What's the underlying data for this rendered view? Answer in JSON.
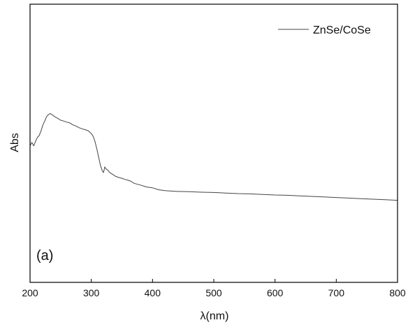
{
  "chart_data": {
    "type": "line",
    "xlabel": "λ(nm)",
    "ylabel": "Abs",
    "xlim": [
      200,
      800
    ],
    "ylim": [
      0,
      1.0
    ],
    "x_ticks": [
      "200",
      "300",
      "400",
      "500",
      "600",
      "700",
      "800"
    ],
    "y_ticks_labeled": false,
    "grid": false,
    "legend_position": "top-right",
    "panel_label": "(a)",
    "colors": {
      "line": "#444444",
      "axis": "#000000"
    },
    "series": [
      {
        "name": "ZnSe/CoSe",
        "x": [
          200,
          203,
          206,
          209,
          212,
          215,
          218,
          221,
          224,
          227,
          230,
          233,
          236,
          240,
          245,
          250,
          255,
          260,
          265,
          270,
          275,
          280,
          285,
          290,
          295,
          300,
          303,
          306,
          309,
          312,
          315,
          318,
          320,
          322,
          324,
          326,
          328,
          330,
          335,
          340,
          345,
          350,
          355,
          360,
          365,
          370,
          380,
          390,
          400,
          410,
          420,
          440,
          460,
          480,
          500,
          520,
          540,
          560,
          580,
          600,
          620,
          640,
          660,
          680,
          700,
          720,
          740,
          760,
          780,
          800
        ],
        "y": [
          0.491,
          0.503,
          0.491,
          0.507,
          0.521,
          0.528,
          0.545,
          0.566,
          0.58,
          0.596,
          0.603,
          0.607,
          0.603,
          0.596,
          0.59,
          0.583,
          0.58,
          0.576,
          0.573,
          0.566,
          0.562,
          0.556,
          0.552,
          0.549,
          0.545,
          0.535,
          0.525,
          0.507,
          0.48,
          0.45,
          0.42,
          0.401,
          0.395,
          0.415,
          0.408,
          0.405,
          0.401,
          0.395,
          0.388,
          0.381,
          0.377,
          0.374,
          0.37,
          0.367,
          0.363,
          0.356,
          0.35,
          0.343,
          0.34,
          0.333,
          0.33,
          0.327,
          0.326,
          0.324,
          0.323,
          0.321,
          0.319,
          0.318,
          0.316,
          0.314,
          0.313,
          0.311,
          0.309,
          0.307,
          0.305,
          0.303,
          0.301,
          0.299,
          0.297,
          0.295
        ]
      }
    ]
  }
}
